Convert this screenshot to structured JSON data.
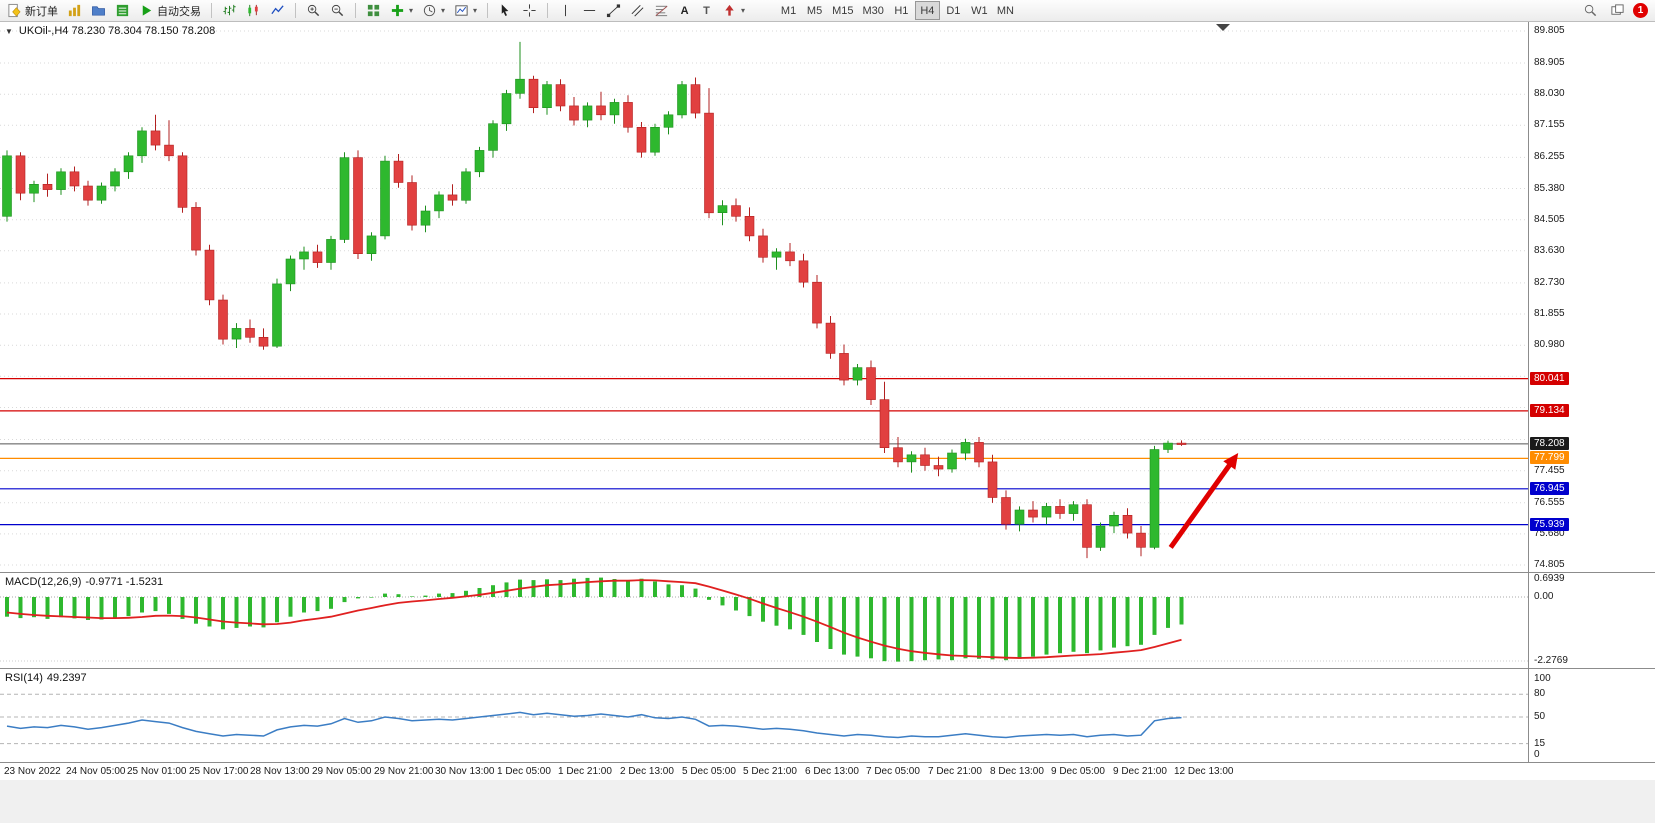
{
  "toolbar": {
    "new_order": "新订单",
    "auto_trading": "自动交易",
    "text_tool": "A",
    "label_tool": "T",
    "timeframes": [
      "M1",
      "M5",
      "M15",
      "M30",
      "H1",
      "H4",
      "D1",
      "W1",
      "MN"
    ],
    "active_timeframe": "H4",
    "notification_count": "1"
  },
  "chart": {
    "title": "UKOil-,H4 78.230 78.304 78.150 78.208",
    "symbol": "UKOil-",
    "period": "H4",
    "open": "78.230",
    "high": "78.304",
    "low": "78.150",
    "close": "78.208"
  },
  "indicators": {
    "macd_label": "MACD(12,26,9)",
    "macd_values": "-0.9771 -1.5231",
    "rsi_label": "RSI(14)",
    "rsi_value": "49.2397"
  },
  "chart_data": {
    "type": "candlestick",
    "symbol": "UKOil-",
    "timeframe": "H4",
    "price_max": 89.805,
    "price_min": 74.805,
    "colors": {
      "up": "#2eb82e",
      "up_edge": "#1e8f1e",
      "down": "#e14040",
      "down_edge": "#b22020",
      "grid": "#d9d9d9",
      "level": "#b4b4b4",
      "macd_hist": "#2eb82e",
      "macd_signal": "#e02020",
      "rsi": "#3b7dc4",
      "arrow": "#e00000"
    },
    "price_axis": [
      {
        "price": 89.805,
        "label": "89.805"
      },
      {
        "price": 88.905,
        "label": "88.905"
      },
      {
        "price": 88.03,
        "label": "88.030"
      },
      {
        "price": 87.155,
        "label": "87.155"
      },
      {
        "price": 86.255,
        "label": "86.255"
      },
      {
        "price": 85.38,
        "label": "85.380"
      },
      {
        "price": 84.505,
        "label": "84.505"
      },
      {
        "price": 83.63,
        "label": "83.630"
      },
      {
        "price": 82.73,
        "label": "82.730"
      },
      {
        "price": 81.855,
        "label": "81.855"
      },
      {
        "price": 80.98,
        "label": "80.980"
      },
      {
        "price": 80.105,
        "label": ""
      },
      {
        "price": 79.23,
        "label": ""
      },
      {
        "price": 78.33,
        "label": ""
      },
      {
        "price": 77.455,
        "label": "77.455"
      },
      {
        "price": 76.555,
        "label": "76.555"
      },
      {
        "price": 75.68,
        "label": "75.680"
      },
      {
        "price": 74.805,
        "label": "74.805"
      }
    ],
    "hlines": [
      {
        "price": 80.041,
        "label": "80.041",
        "color": "#d40000",
        "badge": "#d40000",
        "style": "solid"
      },
      {
        "price": 79.134,
        "label": "79.134",
        "color": "#d40000",
        "badge": "#d40000",
        "style": "solid"
      },
      {
        "price": 78.208,
        "label": "78.208",
        "color": "#555555",
        "badge": "#1a1a1a",
        "style": "current"
      },
      {
        "price": 77.799,
        "label": "77.799",
        "color": "#ff8c00",
        "badge": "#ff8c00",
        "style": "solid"
      },
      {
        "price": 76.945,
        "label": "76.945",
        "color": "#0000cd",
        "badge": "#0000cd",
        "style": "solid"
      },
      {
        "price": 75.939,
        "label": "75.939",
        "color": "#0000cd",
        "badge": "#0000cd",
        "style": "solid"
      }
    ],
    "arrow": {
      "from_bar": 86.2,
      "from_price": 75.3,
      "to_bar": 91.2,
      "to_price": 77.95
    },
    "time_labels": [
      "23 Nov 2022",
      "24 Nov 05:00",
      "25 Nov 01:00",
      "25 Nov 17:00",
      "28 Nov 13:00",
      "29 Nov 05:00",
      "29 Nov 21:00",
      "30 Nov 13:00",
      "1 Dec 05:00",
      "1 Dec 21:00",
      "2 Dec 13:00",
      "5 Dec 05:00",
      "5 Dec 21:00",
      "6 Dec 13:00",
      "7 Dec 05:00",
      "7 Dec 21:00",
      "8 Dec 13:00",
      "9 Dec 05:00",
      "9 Dec 21:00",
      "12 Dec 13:00"
    ],
    "candles": [
      [
        84.6,
        86.45,
        84.45,
        86.3
      ],
      [
        86.3,
        86.4,
        85.05,
        85.25
      ],
      [
        85.25,
        85.6,
        85.0,
        85.5
      ],
      [
        85.5,
        85.8,
        85.15,
        85.35
      ],
      [
        85.35,
        85.95,
        85.2,
        85.85
      ],
      [
        85.85,
        86.0,
        85.3,
        85.45
      ],
      [
        85.45,
        85.6,
        84.9,
        85.05
      ],
      [
        85.05,
        85.55,
        84.95,
        85.45
      ],
      [
        85.45,
        85.95,
        85.3,
        85.85
      ],
      [
        85.85,
        86.4,
        85.65,
        86.3
      ],
      [
        86.3,
        87.1,
        86.1,
        87.0
      ],
      [
        87.0,
        87.45,
        86.45,
        86.6
      ],
      [
        86.6,
        87.3,
        86.15,
        86.3
      ],
      [
        86.3,
        86.4,
        84.7,
        84.85
      ],
      [
        84.85,
        85.0,
        83.5,
        83.65
      ],
      [
        83.65,
        83.8,
        82.1,
        82.25
      ],
      [
        82.25,
        82.4,
        81.0,
        81.15
      ],
      [
        81.15,
        81.6,
        80.9,
        81.45
      ],
      [
        81.45,
        81.7,
        81.05,
        81.2
      ],
      [
        81.2,
        81.45,
        80.85,
        80.95
      ],
      [
        80.95,
        82.85,
        80.9,
        82.7
      ],
      [
        82.7,
        83.5,
        82.5,
        83.4
      ],
      [
        83.4,
        83.75,
        83.1,
        83.6
      ],
      [
        83.6,
        83.8,
        83.15,
        83.3
      ],
      [
        83.3,
        84.05,
        83.1,
        83.95
      ],
      [
        83.95,
        86.4,
        83.85,
        86.25
      ],
      [
        86.25,
        86.45,
        83.4,
        83.55
      ],
      [
        83.55,
        84.15,
        83.35,
        84.05
      ],
      [
        84.05,
        86.3,
        83.95,
        86.15
      ],
      [
        86.15,
        86.35,
        85.4,
        85.55
      ],
      [
        85.55,
        85.75,
        84.2,
        84.35
      ],
      [
        84.35,
        84.9,
        84.15,
        84.75
      ],
      [
        84.75,
        85.3,
        84.55,
        85.2
      ],
      [
        85.2,
        85.5,
        84.9,
        85.05
      ],
      [
        85.05,
        85.95,
        84.95,
        85.85
      ],
      [
        85.85,
        86.55,
        85.7,
        86.45
      ],
      [
        86.45,
        87.3,
        86.25,
        87.2
      ],
      [
        87.2,
        88.15,
        87.0,
        88.05
      ],
      [
        88.05,
        89.5,
        87.9,
        88.45
      ],
      [
        88.45,
        88.55,
        87.5,
        87.65
      ],
      [
        87.65,
        88.4,
        87.45,
        88.3
      ],
      [
        88.3,
        88.45,
        87.55,
        87.7
      ],
      [
        87.7,
        87.95,
        87.15,
        87.3
      ],
      [
        87.3,
        87.8,
        87.1,
        87.7
      ],
      [
        87.7,
        88.1,
        87.3,
        87.45
      ],
      [
        87.45,
        87.9,
        87.2,
        87.8
      ],
      [
        87.8,
        88.0,
        86.95,
        87.1
      ],
      [
        87.1,
        87.25,
        86.25,
        86.4
      ],
      [
        86.4,
        87.2,
        86.3,
        87.1
      ],
      [
        87.1,
        87.55,
        86.9,
        87.45
      ],
      [
        87.45,
        88.4,
        87.35,
        88.3
      ],
      [
        88.3,
        88.5,
        87.35,
        87.5
      ],
      [
        87.5,
        88.2,
        84.55,
        84.7
      ],
      [
        84.7,
        85.05,
        84.35,
        84.9
      ],
      [
        84.9,
        85.1,
        84.45,
        84.6
      ],
      [
        84.6,
        84.85,
        83.9,
        84.05
      ],
      [
        84.05,
        84.25,
        83.3,
        83.45
      ],
      [
        83.45,
        83.7,
        83.1,
        83.6
      ],
      [
        83.6,
        83.85,
        83.2,
        83.35
      ],
      [
        83.35,
        83.55,
        82.6,
        82.75
      ],
      [
        82.75,
        82.95,
        81.45,
        81.6
      ],
      [
        81.6,
        81.8,
        80.6,
        80.75
      ],
      [
        80.75,
        81.0,
        79.85,
        80.0
      ],
      [
        80.0,
        80.45,
        79.85,
        80.35
      ],
      [
        80.35,
        80.55,
        79.3,
        79.45
      ],
      [
        79.45,
        79.95,
        77.95,
        78.1
      ],
      [
        78.1,
        78.4,
        77.55,
        77.7
      ],
      [
        77.7,
        78.0,
        77.4,
        77.9
      ],
      [
        77.9,
        78.1,
        77.45,
        77.6
      ],
      [
        77.6,
        77.85,
        77.3,
        77.5
      ],
      [
        77.5,
        78.05,
        77.4,
        77.95
      ],
      [
        77.95,
        78.35,
        77.75,
        78.25
      ],
      [
        78.25,
        78.4,
        77.55,
        77.7
      ],
      [
        77.7,
        77.9,
        76.55,
        76.7
      ],
      [
        76.7,
        76.9,
        75.8,
        75.95
      ],
      [
        75.95,
        76.45,
        75.75,
        76.35
      ],
      [
        76.35,
        76.6,
        76.0,
        76.15
      ],
      [
        76.15,
        76.55,
        75.95,
        76.45
      ],
      [
        76.45,
        76.65,
        76.1,
        76.25
      ],
      [
        76.25,
        76.6,
        76.05,
        76.5
      ],
      [
        76.5,
        76.65,
        75.0,
        75.3
      ],
      [
        75.3,
        76.0,
        75.2,
        75.9
      ],
      [
        75.9,
        76.3,
        75.7,
        76.2
      ],
      [
        76.2,
        76.4,
        75.55,
        75.7
      ],
      [
        75.7,
        75.9,
        75.05,
        75.3
      ],
      [
        75.3,
        78.15,
        75.25,
        78.05
      ],
      [
        78.05,
        78.3,
        77.95,
        78.23
      ],
      [
        78.23,
        78.304,
        78.15,
        78.21
      ]
    ],
    "macd": {
      "max": 0.6939,
      "min": -2.2769,
      "scale": [
        {
          "v": 0.6939,
          "label": "0.6939"
        },
        {
          "v": 0,
          "label": "0.00"
        },
        {
          "v": -2.2769,
          "label": "-2.2769"
        }
      ],
      "histogram": [
        -0.7,
        -0.75,
        -0.72,
        -0.78,
        -0.72,
        -0.76,
        -0.82,
        -0.8,
        -0.75,
        -0.68,
        -0.55,
        -0.5,
        -0.6,
        -0.78,
        -0.95,
        -1.05,
        -1.15,
        -1.1,
        -1.05,
        -1.08,
        -0.9,
        -0.7,
        -0.55,
        -0.5,
        -0.42,
        -0.18,
        -0.05,
        -0.02,
        0.12,
        0.1,
        0.02,
        0.05,
        0.12,
        0.14,
        0.22,
        0.32,
        0.42,
        0.52,
        0.62,
        0.6,
        0.63,
        0.6,
        0.65,
        0.68,
        0.69,
        0.64,
        0.6,
        0.65,
        0.55,
        0.45,
        0.42,
        0.3,
        -0.1,
        -0.3,
        -0.48,
        -0.68,
        -0.88,
        -1.02,
        -1.15,
        -1.35,
        -1.6,
        -1.85,
        -2.05,
        -2.12,
        -2.18,
        -2.28,
        -2.3,
        -2.28,
        -2.25,
        -2.22,
        -2.25,
        -2.18,
        -2.2,
        -2.22,
        -2.25,
        -2.2,
        -2.12,
        -2.05,
        -2.0,
        -1.95,
        -2.0,
        -1.9,
        -1.8,
        -1.75,
        -1.7,
        -1.35,
        -1.1,
        -0.98
      ],
      "signal": [
        -0.55,
        -0.6,
        -0.64,
        -0.67,
        -0.69,
        -0.71,
        -0.73,
        -0.75,
        -0.75,
        -0.74,
        -0.71,
        -0.67,
        -0.66,
        -0.68,
        -0.73,
        -0.8,
        -0.87,
        -0.91,
        -0.94,
        -0.97,
        -0.96,
        -0.91,
        -0.83,
        -0.77,
        -0.7,
        -0.59,
        -0.48,
        -0.39,
        -0.29,
        -0.21,
        -0.16,
        -0.12,
        -0.07,
        -0.03,
        0.02,
        0.08,
        0.15,
        0.22,
        0.3,
        0.36,
        0.42,
        0.45,
        0.49,
        0.53,
        0.56,
        0.58,
        0.58,
        0.6,
        0.59,
        0.56,
        0.53,
        0.49,
        0.37,
        0.23,
        0.09,
        -0.06,
        -0.23,
        -0.39,
        -0.54,
        -0.7,
        -0.88,
        -1.07,
        -1.27,
        -1.44,
        -1.59,
        -1.73,
        -1.84,
        -1.93,
        -1.99,
        -2.04,
        -2.08,
        -2.1,
        -2.12,
        -2.14,
        -2.16,
        -2.17,
        -2.16,
        -2.14,
        -2.11,
        -2.08,
        -2.06,
        -2.03,
        -1.98,
        -1.94,
        -1.89,
        -1.78,
        -1.65,
        -1.52
      ]
    },
    "rsi": {
      "levels": [
        80,
        50,
        15
      ],
      "scale": [
        {
          "v": 100,
          "label": "100"
        },
        {
          "v": 80,
          "label": "80"
        },
        {
          "v": 50,
          "label": "50"
        },
        {
          "v": 15,
          "label": "15"
        },
        {
          "v": 0,
          "label": "0"
        }
      ],
      "values": [
        38,
        35,
        37,
        36,
        39,
        37,
        34,
        36,
        39,
        42,
        46,
        44,
        42,
        36,
        31,
        28,
        25,
        27,
        26,
        25,
        33,
        37,
        39,
        38,
        41,
        48,
        43,
        45,
        50,
        48,
        45,
        46,
        47,
        46,
        48,
        50,
        52,
        54,
        56,
        53,
        55,
        53,
        51,
        52,
        54,
        52,
        50,
        53,
        49,
        48,
        50,
        47,
        38,
        39,
        38,
        36,
        34,
        35,
        34,
        32,
        29,
        27,
        25,
        27,
        26,
        24,
        23,
        25,
        24,
        24,
        26,
        28,
        26,
        24,
        23,
        25,
        26,
        27,
        26,
        27,
        24,
        26,
        27,
        25,
        26,
        45,
        48,
        49.24
      ]
    }
  }
}
